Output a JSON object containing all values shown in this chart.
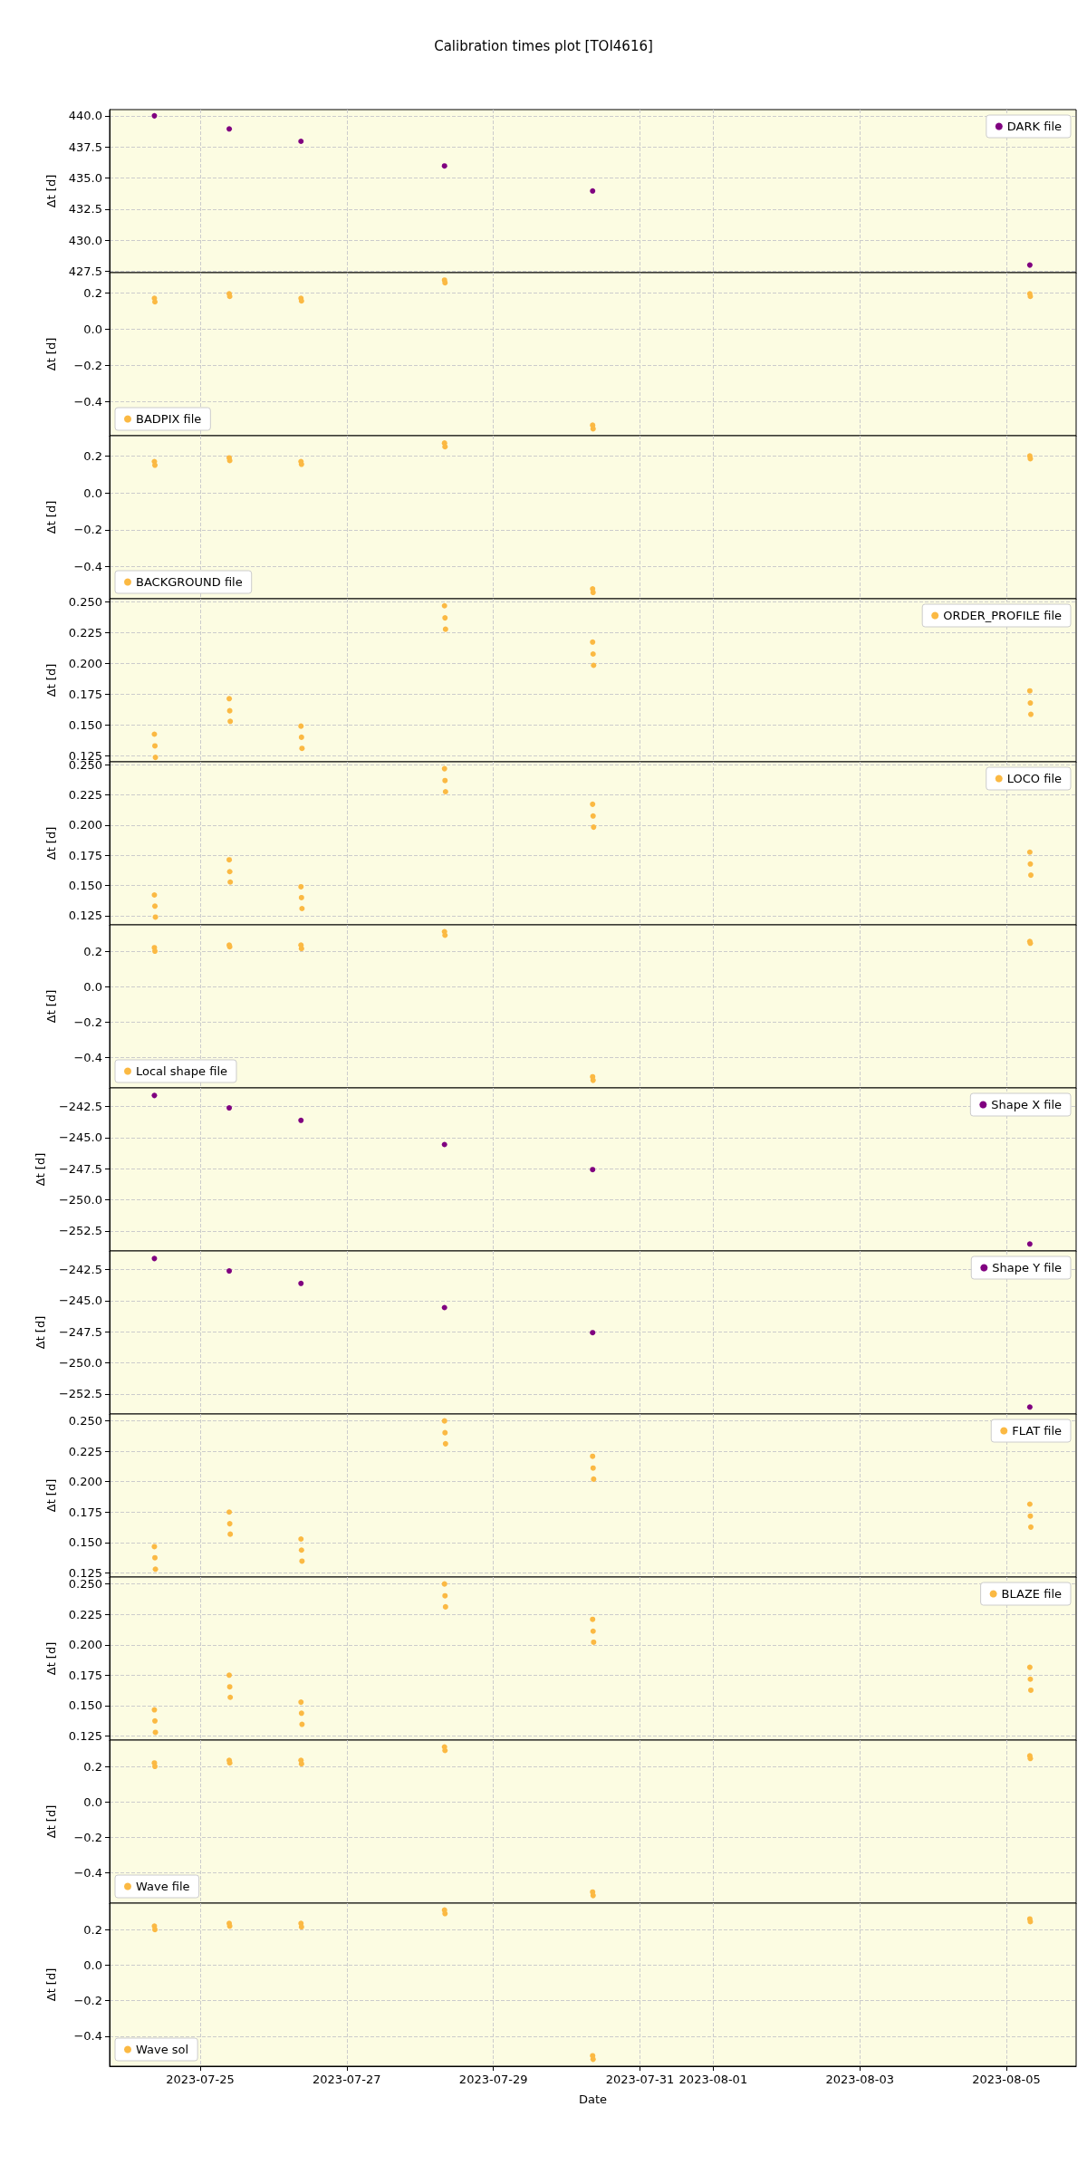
{
  "chart_data": [
    {
      "type": "scatter",
      "title": "Calibration times plot [TOI4616]",
      "ylabel": "Δt [d]",
      "grid": true,
      "marker": "circle",
      "legend": "top right",
      "tick_labels": "y",
      "xlim": [
        "2023-07-23T18:20",
        "2023-08-05T22:50"
      ],
      "xticks": [
        "2023-07-25",
        "2023-07-27",
        "2023-07-29",
        "2023-07-31",
        "2023-08-01",
        "2023-08-03",
        "2023-08-05"
      ],
      "ylim": [
        427.39,
        440.5
      ],
      "yticks": [
        {
          "value": 427.5,
          "label": "427.5"
        },
        {
          "value": 430,
          "label": "430.0"
        },
        {
          "value": 432.5,
          "label": "432.5"
        },
        {
          "value": 435,
          "label": "435.0"
        },
        {
          "value": 437.5,
          "label": "437.5"
        },
        {
          "value": 440,
          "label": "440.0"
        }
      ],
      "series": [
        {
          "name": "DARK file",
          "color": "#800080",
          "x": [
            "2023-07-24T09:00",
            "2023-07-25T09:30",
            "2023-07-26T09:00",
            "2023-07-28T08:00",
            "2023-07-30T08:30",
            "2023-08-05T07:40"
          ],
          "values": [
            440.0,
            438.95,
            437.95,
            435.97,
            433.96,
            428.0
          ]
        }
      ]
    },
    {
      "type": "scatter",
      "ylabel": "Δt [d]",
      "grid": true,
      "marker": "circle",
      "legend": "bottom left",
      "tick_labels": "y",
      "xlim": [
        "2023-07-23T18:20",
        "2023-08-05T22:50"
      ],
      "xticks": [
        "2023-07-25",
        "2023-07-27",
        "2023-07-29",
        "2023-07-31",
        "2023-08-01",
        "2023-08-03",
        "2023-08-05"
      ],
      "ylim": [
        -0.588,
        0.311
      ],
      "yticks": [
        {
          "value": -0.4,
          "label": "−0.4"
        },
        {
          "value": -0.2,
          "label": "−0.2"
        },
        {
          "value": 0,
          "label": "0.0"
        },
        {
          "value": 0.2,
          "label": "0.2"
        }
      ],
      "series": [
        {
          "name": "BADPIX file",
          "color": "#fbb943",
          "x": [
            "2023-07-24T09:00",
            "2023-07-24T09:10",
            "2023-07-25T09:30",
            "2023-07-25T09:40",
            "2023-07-26T09:00",
            "2023-07-26T09:10",
            "2023-07-28T08:00",
            "2023-07-28T08:10",
            "2023-07-30T08:30",
            "2023-07-30T08:40",
            "2023-08-05T07:40",
            "2023-08-05T07:50"
          ],
          "values": [
            0.17,
            0.15,
            0.195,
            0.18,
            0.17,
            0.155,
            0.27,
            0.255,
            -0.53,
            -0.55,
            0.195,
            0.18
          ]
        }
      ]
    },
    {
      "type": "scatter",
      "ylabel": "Δt [d]",
      "grid": true,
      "marker": "circle",
      "legend": "bottom left",
      "tick_labels": "y",
      "xlim": [
        "2023-07-23T18:20",
        "2023-08-05T22:50"
      ],
      "xticks": [
        "2023-07-25",
        "2023-07-27",
        "2023-07-29",
        "2023-07-31",
        "2023-08-01",
        "2023-08-03",
        "2023-08-05"
      ],
      "ylim": [
        -0.574,
        0.31
      ],
      "yticks": [
        {
          "value": -0.4,
          "label": "−0.4"
        },
        {
          "value": -0.2,
          "label": "−0.2"
        },
        {
          "value": 0,
          "label": "0.0"
        },
        {
          "value": 0.2,
          "label": "0.2"
        }
      ],
      "series": [
        {
          "name": "BACKGROUND file",
          "color": "#fbb943",
          "x": [
            "2023-07-24T09:00",
            "2023-07-24T09:10",
            "2023-07-25T09:30",
            "2023-07-25T09:40",
            "2023-07-26T09:00",
            "2023-07-26T09:10",
            "2023-07-28T08:00",
            "2023-07-28T08:10",
            "2023-07-30T08:30",
            "2023-07-30T08:40",
            "2023-08-05T07:40",
            "2023-08-05T07:50"
          ],
          "values": [
            0.17,
            0.15,
            0.19,
            0.175,
            0.17,
            0.155,
            0.27,
            0.25,
            -0.52,
            -0.54,
            0.2,
            0.185
          ]
        }
      ]
    },
    {
      "type": "scatter",
      "ylabel": "Δt [d]",
      "grid": true,
      "marker": "circle",
      "legend": "top right",
      "tick_labels": "y",
      "xlim": [
        "2023-07-23T18:20",
        "2023-08-05T22:50"
      ],
      "xticks": [
        "2023-07-25",
        "2023-07-27",
        "2023-07-29",
        "2023-07-31",
        "2023-08-01",
        "2023-08-03",
        "2023-08-05"
      ],
      "ylim": [
        0.1201,
        0.2523
      ],
      "yticks": [
        {
          "value": 0.125,
          "label": "0.125"
        },
        {
          "value": 0.15,
          "label": "0.150"
        },
        {
          "value": 0.175,
          "label": "0.175"
        },
        {
          "value": 0.2,
          "label": "0.200"
        },
        {
          "value": 0.225,
          "label": "0.225"
        },
        {
          "value": 0.25,
          "label": "0.250"
        }
      ],
      "series": [
        {
          "name": "ORDER_PROFILE file",
          "color": "#fbb943",
          "x": [
            "2023-07-24T09:00",
            "2023-07-24T09:10",
            "2023-07-24T09:20",
            "2023-07-25T09:30",
            "2023-07-25T09:40",
            "2023-07-25T09:50",
            "2023-07-26T09:00",
            "2023-07-26T09:10",
            "2023-07-26T09:20",
            "2023-07-28T08:00",
            "2023-07-28T08:10",
            "2023-07-28T08:20",
            "2023-07-30T08:30",
            "2023-07-30T08:40",
            "2023-07-30T08:50",
            "2023-08-05T07:40",
            "2023-08-05T07:50",
            "2023-08-05T08:00"
          ],
          "values": [
            0.1425,
            0.133,
            0.1237,
            0.1713,
            0.1615,
            0.1529,
            0.149,
            0.14,
            0.131,
            0.2466,
            0.2368,
            0.2276,
            0.2172,
            0.2075,
            0.1983,
            0.1776,
            0.1678,
            0.1586
          ]
        }
      ]
    },
    {
      "type": "scatter",
      "ylabel": "Δt [d]",
      "grid": true,
      "marker": "circle",
      "legend": "top right",
      "tick_labels": "y",
      "xlim": [
        "2023-07-23T18:20",
        "2023-08-05T22:50"
      ],
      "xticks": [
        "2023-07-25",
        "2023-07-27",
        "2023-07-29",
        "2023-07-31",
        "2023-08-01",
        "2023-08-03",
        "2023-08-05"
      ],
      "ylim": [
        0.1175,
        0.2523
      ],
      "yticks": [
        {
          "value": 0.125,
          "label": "0.125"
        },
        {
          "value": 0.15,
          "label": "0.150"
        },
        {
          "value": 0.175,
          "label": "0.175"
        },
        {
          "value": 0.2,
          "label": "0.200"
        },
        {
          "value": 0.225,
          "label": "0.225"
        },
        {
          "value": 0.25,
          "label": "0.250"
        }
      ],
      "series": [
        {
          "name": "LOCO file",
          "color": "#fbb943",
          "x": [
            "2023-07-24T09:00",
            "2023-07-24T09:10",
            "2023-07-24T09:20",
            "2023-07-25T09:30",
            "2023-07-25T09:40",
            "2023-07-25T09:50",
            "2023-07-26T09:00",
            "2023-07-26T09:10",
            "2023-07-26T09:20",
            "2023-07-28T08:00",
            "2023-07-28T08:10",
            "2023-07-28T08:20",
            "2023-07-30T08:30",
            "2023-07-30T08:40",
            "2023-07-30T08:50",
            "2023-08-05T07:40",
            "2023-08-05T07:50",
            "2023-08-05T08:00"
          ],
          "values": [
            0.1422,
            0.133,
            0.1239,
            0.1713,
            0.1615,
            0.1529,
            0.149,
            0.14,
            0.131,
            0.2466,
            0.2368,
            0.2276,
            0.2172,
            0.2075,
            0.1983,
            0.1776,
            0.1678,
            0.1586
          ]
        }
      ]
    },
    {
      "type": "scatter",
      "ylabel": "Δt [d]",
      "grid": true,
      "marker": "circle",
      "legend": "bottom left",
      "tick_labels": "y",
      "xlim": [
        "2023-07-23T18:20",
        "2023-08-05T22:50"
      ],
      "xticks": [
        "2023-07-25",
        "2023-07-27",
        "2023-07-29",
        "2023-07-31",
        "2023-08-01",
        "2023-08-03",
        "2023-08-05"
      ],
      "ylim": [
        -0.573,
        0.349
      ],
      "yticks": [
        {
          "value": -0.4,
          "label": "−0.4"
        },
        {
          "value": -0.2,
          "label": "−0.2"
        },
        {
          "value": 0,
          "label": "0.0"
        },
        0.2
      ],
      "series": [
        {
          "name": "Local shape file",
          "color": "#fbb943",
          "x": [
            "2023-07-24T09:00",
            "2023-07-24T09:10",
            "2023-07-25T09:30",
            "2023-07-25T09:40",
            "2023-07-26T09:00",
            "2023-07-26T09:10",
            "2023-07-28T08:00",
            "2023-07-28T08:10",
            "2023-07-30T08:30",
            "2023-07-30T08:40",
            "2023-08-05T07:40",
            "2023-08-05T07:50"
          ],
          "values": [
            0.22,
            0.2,
            0.235,
            0.225,
            0.235,
            0.215,
            0.31,
            0.29,
            -0.51,
            -0.53,
            0.255,
            0.245
          ]
        }
      ]
    },
    {
      "type": "scatter",
      "ylabel": "Δt [d]",
      "grid": true,
      "marker": "circle",
      "legend": "top right",
      "tick_labels": "y",
      "xlim": [
        "2023-07-23T18:20",
        "2023-08-05T22:50"
      ],
      "xticks": [
        "2023-07-25",
        "2023-07-27",
        "2023-07-29",
        "2023-07-31",
        "2023-08-01",
        "2023-08-03",
        "2023-08-05"
      ],
      "ylim": [
        -254.12,
        -240.99
      ],
      "yticks": [
        {
          "value": -252.5,
          "label": "−252.5"
        },
        {
          "value": -250,
          "label": "−250.0"
        },
        {
          "value": -247.5,
          "label": "−247.5"
        },
        {
          "value": -245,
          "label": "−245.0"
        },
        {
          "value": -242.5,
          "label": "−242.5"
        }
      ],
      "series": [
        {
          "name": "Shape X file",
          "color": "#800080",
          "x": [
            "2023-07-24T09:00",
            "2023-07-25T09:30",
            "2023-07-26T09:00",
            "2023-07-28T08:00",
            "2023-07-30T08:30",
            "2023-08-05T07:40"
          ],
          "values": [
            -241.6,
            -242.6,
            -243.6,
            -245.55,
            -247.57,
            -253.56
          ]
        }
      ]
    },
    {
      "type": "scatter",
      "ylabel": "Δt [d]",
      "grid": true,
      "marker": "circle",
      "legend": "top right",
      "tick_labels": "y",
      "xlim": [
        "2023-07-23T18:20",
        "2023-08-05T22:50"
      ],
      "xticks": [
        "2023-07-25",
        "2023-07-27",
        "2023-07-29",
        "2023-07-31",
        "2023-08-01",
        "2023-08-03",
        "2023-08-05"
      ],
      "ylim": [
        -254.12,
        -240.99
      ],
      "yticks": [
        {
          "value": -252.5,
          "label": "−252.5"
        },
        {
          "value": -250,
          "label": "−250.0"
        },
        {
          "value": -247.5,
          "label": "−247.5"
        },
        {
          "value": -245,
          "label": "−245.0"
        },
        {
          "value": -242.5,
          "label": "−242.5"
        }
      ],
      "series": [
        {
          "name": "Shape Y file",
          "color": "#800080",
          "x": [
            "2023-07-24T09:00",
            "2023-07-25T09:30",
            "2023-07-26T09:00",
            "2023-07-28T08:00",
            "2023-07-30T08:30",
            "2023-08-05T07:40"
          ],
          "values": [
            -241.6,
            -242.6,
            -243.6,
            -245.55,
            -247.57,
            -253.56
          ]
        }
      ]
    },
    {
      "type": "scatter",
      "ylabel": "Δt [d]",
      "grid": true,
      "marker": "circle",
      "legend": "top right",
      "tick_labels": "y",
      "xlim": [
        "2023-07-23T18:20",
        "2023-08-05T22:50"
      ],
      "xticks": [
        "2023-07-25",
        "2023-07-27",
        "2023-07-29",
        "2023-07-31",
        "2023-08-01",
        "2023-08-03",
        "2023-08-05"
      ],
      "ylim": [
        0.1215,
        0.2557
      ],
      "yticks": [
        {
          "value": 0.125,
          "label": "0.125"
        },
        {
          "value": 0.15,
          "label": "0.150"
        },
        {
          "value": 0.175,
          "label": "0.175"
        },
        {
          "value": 0.2,
          "label": "0.200"
        },
        {
          "value": 0.225,
          "label": "0.225"
        },
        {
          "value": 0.25,
          "label": "0.250"
        }
      ],
      "series": [
        {
          "name": "FLAT file",
          "color": "#fbb943",
          "x": [
            "2023-07-24T09:00",
            "2023-07-24T09:10",
            "2023-07-24T09:20",
            "2023-07-25T09:30",
            "2023-07-25T09:40",
            "2023-07-25T09:50",
            "2023-07-26T09:00",
            "2023-07-26T09:10",
            "2023-07-26T09:20",
            "2023-07-28T08:00",
            "2023-07-28T08:10",
            "2023-07-28T08:20",
            "2023-07-30T08:30",
            "2023-07-30T08:40",
            "2023-07-30T08:50",
            "2023-08-05T07:40",
            "2023-08-05T07:50",
            "2023-08-05T08:00"
          ],
          "values": [
            0.1465,
            0.1374,
            0.128,
            0.175,
            0.1654,
            0.1568,
            0.1528,
            0.1437,
            0.1346,
            0.25,
            0.2403,
            0.2312,
            0.2209,
            0.2112,
            0.2021,
            0.1815,
            0.1717,
            0.1626
          ]
        }
      ]
    },
    {
      "type": "scatter",
      "ylabel": "Δt [d]",
      "grid": true,
      "marker": "circle",
      "legend": "top right",
      "tick_labels": "y",
      "xlim": [
        "2023-07-23T18:20",
        "2023-08-05T22:50"
      ],
      "xticks": [
        "2023-07-25",
        "2023-07-27",
        "2023-07-29",
        "2023-07-31",
        "2023-08-01",
        "2023-08-03",
        "2023-08-05"
      ],
      "ylim": [
        0.1216,
        0.2557
      ],
      "yticks": [
        {
          "value": 0.125,
          "label": "0.125"
        },
        {
          "value": 0.15,
          "label": "0.150"
        },
        {
          "value": 0.175,
          "label": "0.175"
        },
        {
          "value": 0.2,
          "label": "0.200"
        },
        {
          "value": 0.225,
          "label": "0.225"
        },
        {
          "value": 0.25,
          "label": "0.250"
        }
      ],
      "series": [
        {
          "name": "BLAZE file",
          "color": "#fbb943",
          "x": [
            "2023-07-24T09:00",
            "2023-07-24T09:10",
            "2023-07-24T09:20",
            "2023-07-25T09:30",
            "2023-07-25T09:40",
            "2023-07-25T09:50",
            "2023-07-26T09:00",
            "2023-07-26T09:10",
            "2023-07-26T09:20",
            "2023-07-28T08:00",
            "2023-07-28T08:10",
            "2023-07-28T08:20",
            "2023-07-30T08:30",
            "2023-07-30T08:40",
            "2023-07-30T08:50",
            "2023-08-05T07:40",
            "2023-08-05T07:50",
            "2023-08-05T08:00"
          ],
          "values": [
            0.1465,
            0.1374,
            0.128,
            0.175,
            0.1654,
            0.1568,
            0.1528,
            0.1437,
            0.1346,
            0.25,
            0.2403,
            0.2312,
            0.2209,
            0.2112,
            0.2021,
            0.1815,
            0.1717,
            0.1626
          ]
        }
      ]
    },
    {
      "type": "scatter",
      "ylabel": "Δt [d]",
      "grid": true,
      "marker": "circle",
      "legend": "bottom left",
      "tick_labels": "y",
      "xlim": [
        "2023-07-23T18:20",
        "2023-08-05T22:50"
      ],
      "xticks": [
        "2023-07-25",
        "2023-07-27",
        "2023-07-29",
        "2023-07-31",
        "2023-08-01",
        "2023-08-03",
        "2023-08-05"
      ],
      "ylim": [
        -0.573,
        0.349
      ],
      "yticks": [
        {
          "value": -0.4,
          "label": "−0.4"
        },
        {
          "value": -0.2,
          "label": "−0.2"
        },
        {
          "value": 0,
          "label": "0.0"
        },
        0.2
      ],
      "series": [
        {
          "name": "Wave file",
          "color": "#fbb943",
          "x": [
            "2023-07-24T09:00",
            "2023-07-24T09:10",
            "2023-07-25T09:30",
            "2023-07-25T09:40",
            "2023-07-26T09:00",
            "2023-07-26T09:10",
            "2023-07-28T08:00",
            "2023-07-28T08:10",
            "2023-07-30T08:30",
            "2023-07-30T08:40",
            "2023-08-05T07:40",
            "2023-08-05T07:50"
          ],
          "values": [
            0.22,
            0.2,
            0.235,
            0.22,
            0.235,
            0.215,
            0.31,
            0.29,
            -0.51,
            -0.53,
            0.26,
            0.245
          ]
        }
      ]
    },
    {
      "type": "scatter",
      "xlabel": "Date",
      "ylabel": "Δt [d]",
      "grid": true,
      "marker": "circle",
      "legend": "bottom left",
      "xlim": [
        "2023-07-23T18:20",
        "2023-08-05T22:50"
      ],
      "xticks": [
        "2023-07-25",
        "2023-07-27",
        "2023-07-29",
        "2023-07-31",
        "2023-08-01",
        "2023-08-03",
        "2023-08-05"
      ],
      "ylim": [
        -0.569,
        0.349
      ],
      "yticks": [
        {
          "value": -0.4,
          "label": "−0.4"
        },
        {
          "value": -0.2,
          "label": "−0.2"
        },
        {
          "value": 0,
          "label": "0.0"
        },
        {
          "value": 0.2,
          "label": "0.2"
        }
      ],
      "series": [
        {
          "name": "Wave sol",
          "color": "#fbb943",
          "x": [
            "2023-07-24T09:00",
            "2023-07-24T09:10",
            "2023-07-25T09:30",
            "2023-07-25T09:40",
            "2023-07-26T09:00",
            "2023-07-26T09:10",
            "2023-07-28T08:00",
            "2023-07-28T08:10",
            "2023-07-30T08:30",
            "2023-07-30T08:40",
            "2023-08-05T07:40",
            "2023-08-05T07:50"
          ],
          "values": [
            0.22,
            0.2,
            0.235,
            0.22,
            0.235,
            0.215,
            0.31,
            0.29,
            -0.51,
            -0.53,
            0.26,
            0.245
          ]
        }
      ]
    }
  ]
}
